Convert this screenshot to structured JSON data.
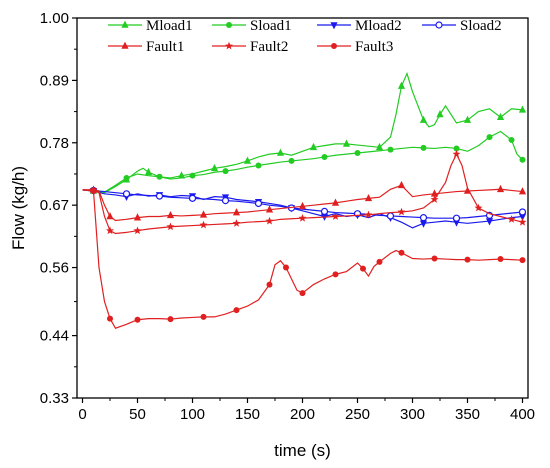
{
  "chart_data": {
    "type": "line",
    "xlabel": "time (s)",
    "ylabel": "Flow (kg/h)",
    "xlim": [
      -5,
      405
    ],
    "ylim": [
      0.33,
      1.0
    ],
    "xticks": [
      0,
      50,
      100,
      150,
      200,
      250,
      300,
      350,
      400
    ],
    "yticks": [
      0.33,
      0.44,
      0.56,
      0.67,
      0.78,
      0.89,
      1.0
    ],
    "ytick_labels": [
      "0.33",
      "0.44",
      "0.56",
      "0.67",
      "0.78",
      "0.89",
      "1.00"
    ],
    "grid": false,
    "legend_position": "top",
    "series": [
      {
        "name": "Mload1",
        "color": "#22cc22",
        "marker": "triangle-up",
        "x": [
          0,
          10,
          20,
          30,
          40,
          50,
          55,
          60,
          70,
          80,
          90,
          100,
          110,
          120,
          130,
          140,
          150,
          160,
          170,
          180,
          190,
          200,
          210,
          220,
          230,
          240,
          250,
          260,
          270,
          280,
          285,
          290,
          295,
          300,
          310,
          315,
          320,
          325,
          330,
          340,
          350,
          360,
          370,
          380,
          390,
          400
        ],
        "y": [
          0.697,
          0.695,
          0.692,
          0.703,
          0.715,
          0.73,
          0.735,
          0.728,
          0.72,
          0.718,
          0.722,
          0.725,
          0.73,
          0.735,
          0.738,
          0.742,
          0.748,
          0.755,
          0.76,
          0.762,
          0.758,
          0.765,
          0.772,
          0.775,
          0.778,
          0.778,
          0.776,
          0.774,
          0.772,
          0.79,
          0.83,
          0.88,
          0.902,
          0.87,
          0.82,
          0.808,
          0.812,
          0.83,
          0.845,
          0.815,
          0.82,
          0.835,
          0.84,
          0.825,
          0.84,
          0.838
        ]
      },
      {
        "name": "Sload1",
        "color": "#22cc22",
        "marker": "circle",
        "x": [
          0,
          10,
          20,
          30,
          40,
          50,
          60,
          70,
          80,
          90,
          100,
          110,
          120,
          130,
          140,
          150,
          160,
          170,
          180,
          190,
          200,
          210,
          220,
          230,
          240,
          250,
          260,
          270,
          280,
          290,
          300,
          310,
          320,
          330,
          340,
          350,
          360,
          370,
          375,
          380,
          390,
          395,
          400
        ],
        "y": [
          0.697,
          0.695,
          0.693,
          0.705,
          0.718,
          0.725,
          0.722,
          0.72,
          0.716,
          0.718,
          0.722,
          0.724,
          0.728,
          0.73,
          0.733,
          0.737,
          0.74,
          0.743,
          0.746,
          0.748,
          0.75,
          0.752,
          0.755,
          0.758,
          0.76,
          0.762,
          0.764,
          0.766,
          0.768,
          0.77,
          0.772,
          0.771,
          0.77,
          0.772,
          0.77,
          0.765,
          0.775,
          0.79,
          0.795,
          0.8,
          0.785,
          0.76,
          0.75
        ]
      },
      {
        "name": "Mload2",
        "color": "#1a1aee",
        "marker": "triangle-down",
        "x": [
          0,
          10,
          20,
          30,
          40,
          50,
          60,
          70,
          80,
          90,
          100,
          110,
          120,
          130,
          140,
          150,
          160,
          170,
          180,
          190,
          200,
          210,
          220,
          230,
          240,
          250,
          260,
          270,
          280,
          290,
          300,
          310,
          320,
          330,
          340,
          350,
          360,
          370,
          380,
          390,
          400
        ],
        "y": [
          0.697,
          0.695,
          0.69,
          0.688,
          0.685,
          0.69,
          0.686,
          0.688,
          0.685,
          0.687,
          0.686,
          0.68,
          0.685,
          0.684,
          0.68,
          0.678,
          0.676,
          0.673,
          0.67,
          0.665,
          0.66,
          0.655,
          0.65,
          0.655,
          0.65,
          0.653,
          0.648,
          0.655,
          0.648,
          0.64,
          0.63,
          0.638,
          0.64,
          0.642,
          0.64,
          0.638,
          0.64,
          0.642,
          0.645,
          0.648,
          0.65
        ]
      },
      {
        "name": "Sload2",
        "color": "#1a1aee",
        "marker": "circle-open",
        "x": [
          0,
          10,
          20,
          30,
          40,
          50,
          60,
          70,
          80,
          90,
          100,
          110,
          120,
          130,
          140,
          150,
          160,
          170,
          180,
          190,
          200,
          210,
          220,
          230,
          240,
          250,
          260,
          270,
          280,
          290,
          300,
          310,
          320,
          330,
          340,
          350,
          360,
          370,
          380,
          390,
          400
        ],
        "y": [
          0.697,
          0.696,
          0.694,
          0.692,
          0.69,
          0.688,
          0.687,
          0.686,
          0.684,
          0.683,
          0.682,
          0.681,
          0.68,
          0.678,
          0.677,
          0.675,
          0.673,
          0.67,
          0.668,
          0.665,
          0.663,
          0.661,
          0.659,
          0.657,
          0.656,
          0.655,
          0.654,
          0.652,
          0.651,
          0.65,
          0.649,
          0.648,
          0.647,
          0.647,
          0.647,
          0.648,
          0.65,
          0.652,
          0.654,
          0.656,
          0.658
        ]
      },
      {
        "name": "Fault1",
        "color": "#e02020",
        "marker": "triangle-up",
        "x": [
          0,
          10,
          15,
          20,
          25,
          30,
          40,
          50,
          60,
          70,
          80,
          90,
          100,
          110,
          120,
          130,
          140,
          150,
          160,
          170,
          180,
          190,
          200,
          210,
          220,
          230,
          240,
          250,
          260,
          270,
          280,
          290,
          300,
          310,
          320,
          330,
          340,
          350,
          360,
          370,
          380,
          390,
          400
        ],
        "y": [
          0.697,
          0.697,
          0.695,
          0.67,
          0.65,
          0.643,
          0.645,
          0.648,
          0.65,
          0.65,
          0.652,
          0.651,
          0.652,
          0.653,
          0.655,
          0.656,
          0.657,
          0.658,
          0.66,
          0.662,
          0.664,
          0.666,
          0.668,
          0.67,
          0.672,
          0.674,
          0.677,
          0.68,
          0.682,
          0.684,
          0.698,
          0.705,
          0.685,
          0.688,
          0.69,
          0.692,
          0.694,
          0.695,
          0.696,
          0.697,
          0.698,
          0.696,
          0.694
        ]
      },
      {
        "name": "Fault2",
        "color": "#e02020",
        "marker": "star",
        "x": [
          0,
          10,
          15,
          20,
          25,
          30,
          40,
          50,
          60,
          70,
          80,
          90,
          100,
          110,
          120,
          130,
          140,
          150,
          160,
          170,
          180,
          190,
          200,
          210,
          220,
          230,
          240,
          250,
          260,
          270,
          280,
          290,
          300,
          310,
          320,
          330,
          335,
          340,
          345,
          350,
          360,
          370,
          380,
          390,
          400
        ],
        "y": [
          0.697,
          0.697,
          0.692,
          0.65,
          0.625,
          0.62,
          0.622,
          0.625,
          0.628,
          0.63,
          0.632,
          0.633,
          0.634,
          0.635,
          0.636,
          0.637,
          0.638,
          0.64,
          0.641,
          0.642,
          0.645,
          0.646,
          0.647,
          0.648,
          0.649,
          0.65,
          0.651,
          0.652,
          0.653,
          0.655,
          0.657,
          0.658,
          0.66,
          0.665,
          0.68,
          0.71,
          0.74,
          0.76,
          0.74,
          0.7,
          0.665,
          0.655,
          0.65,
          0.645,
          0.64
        ]
      },
      {
        "name": "Fault3",
        "color": "#e02020",
        "marker": "circle",
        "x": [
          0,
          10,
          15,
          20,
          25,
          30,
          40,
          50,
          60,
          70,
          80,
          90,
          100,
          110,
          120,
          130,
          140,
          150,
          160,
          170,
          175,
          180,
          185,
          190,
          195,
          200,
          210,
          220,
          230,
          240,
          250,
          255,
          260,
          265,
          270,
          280,
          285,
          290,
          300,
          310,
          320,
          330,
          340,
          350,
          360,
          370,
          380,
          390,
          400
        ],
        "y": [
          0.697,
          0.695,
          0.56,
          0.5,
          0.47,
          0.453,
          0.46,
          0.468,
          0.47,
          0.47,
          0.469,
          0.471,
          0.472,
          0.473,
          0.473,
          0.478,
          0.485,
          0.492,
          0.503,
          0.53,
          0.565,
          0.572,
          0.56,
          0.54,
          0.52,
          0.515,
          0.53,
          0.54,
          0.548,
          0.553,
          0.568,
          0.558,
          0.545,
          0.562,
          0.57,
          0.585,
          0.59,
          0.586,
          0.576,
          0.575,
          0.576,
          0.575,
          0.574,
          0.574,
          0.573,
          0.574,
          0.575,
          0.574,
          0.573
        ]
      }
    ],
    "legend_rows": [
      [
        "Mload1",
        "Sload1",
        "Mload2",
        "Sload2"
      ],
      [
        "Fault1",
        "Fault2",
        "Fault3"
      ]
    ]
  }
}
